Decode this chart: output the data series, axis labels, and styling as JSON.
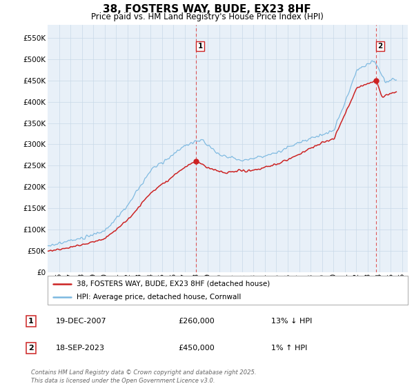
{
  "title": "38, FOSTERS WAY, BUDE, EX23 8HF",
  "subtitle": "Price paid vs. HM Land Registry's House Price Index (HPI)",
  "hpi_color": "#7bb8e0",
  "price_color": "#cc2222",
  "vline_color": "#dd4444",
  "background_color": "#ffffff",
  "plot_bg_color": "#e8f0f8",
  "grid_color": "#c8d8e8",
  "ylim": [
    0,
    580000
  ],
  "yticks": [
    0,
    50000,
    100000,
    150000,
    200000,
    250000,
    300000,
    350000,
    400000,
    450000,
    500000,
    550000
  ],
  "xlim_start": 1995.0,
  "xlim_end": 2026.5,
  "sale1_x": 2007.97,
  "sale1_y": 260000,
  "sale1_label": "1",
  "sale2_x": 2023.72,
  "sale2_y": 450000,
  "sale2_label": "2",
  "legend_line1": "38, FOSTERS WAY, BUDE, EX23 8HF (detached house)",
  "legend_line2": "HPI: Average price, detached house, Cornwall",
  "table_row1_num": "1",
  "table_row1_date": "19-DEC-2007",
  "table_row1_price": "£260,000",
  "table_row1_hpi": "13% ↓ HPI",
  "table_row2_num": "2",
  "table_row2_date": "18-SEP-2023",
  "table_row2_price": "£450,000",
  "table_row2_hpi": "1% ↑ HPI",
  "footer": "Contains HM Land Registry data © Crown copyright and database right 2025.\nThis data is licensed under the Open Government Licence v3.0.",
  "xlabel_years": [
    1996,
    1997,
    1998,
    1999,
    2000,
    2001,
    2002,
    2003,
    2004,
    2005,
    2006,
    2007,
    2008,
    2009,
    2010,
    2011,
    2012,
    2013,
    2014,
    2015,
    2016,
    2017,
    2018,
    2019,
    2020,
    2021,
    2022,
    2023,
    2024,
    2025,
    2026
  ]
}
